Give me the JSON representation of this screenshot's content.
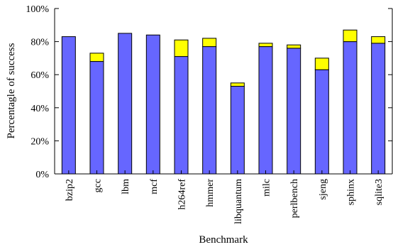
{
  "chart_data": {
    "type": "bar",
    "stacked": true,
    "categories": [
      "bzip2",
      "gcc",
      "lbm",
      "mcf",
      "h264ref",
      "hmmer",
      "libquantum",
      "milc",
      "perlbench",
      "sjeng",
      "sphinx",
      "sqlite3"
    ],
    "series": [
      {
        "color": "#6666ff",
        "values": [
          83,
          68,
          85,
          84,
          71,
          77,
          53,
          77,
          76,
          63,
          80,
          79
        ]
      },
      {
        "color": "#ffff00",
        "values": [
          0,
          5,
          0,
          0,
          10,
          5,
          2,
          2,
          2,
          7,
          7,
          4
        ]
      }
    ],
    "xlabel": "Benchmark",
    "ylabel": "Percentagle of success",
    "ylim": [
      0,
      100
    ],
    "yticks": [
      0,
      20,
      40,
      60,
      80,
      100
    ],
    "ytick_labels": [
      "0%",
      "20%",
      "40%",
      "60%",
      "80%",
      "100%"
    ],
    "grid": false,
    "legend": "none"
  }
}
